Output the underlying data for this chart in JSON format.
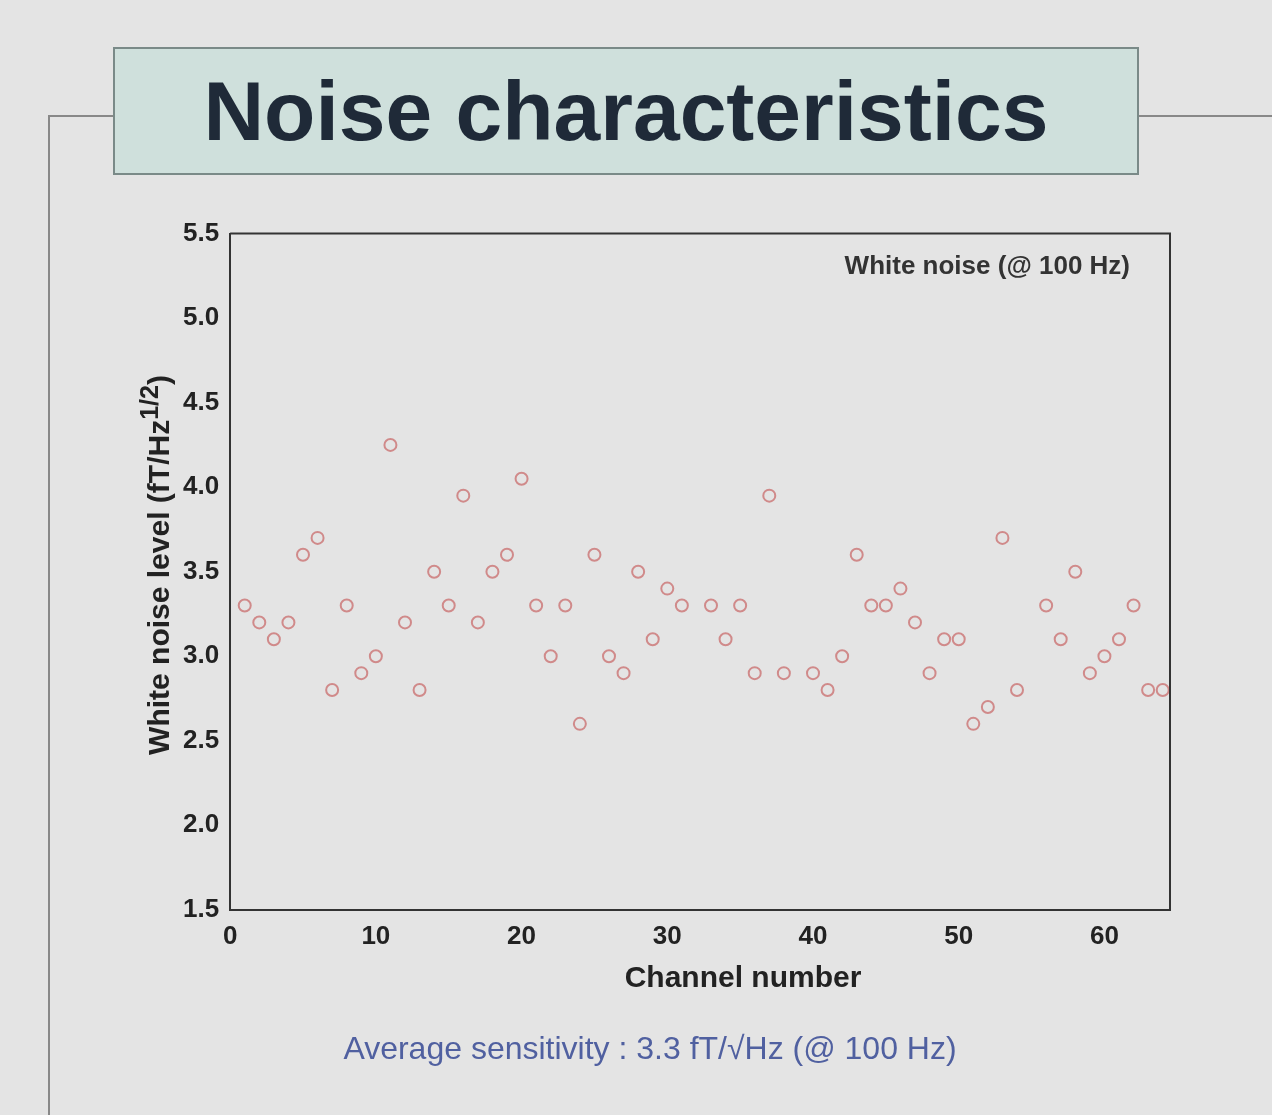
{
  "chart_data": {
    "type": "scatter",
    "title": "Noise characteristics",
    "xlabel": "Channel number",
    "ylabel": "White noise level (fT/Hz$^{1/2}$)",
    "annotations": [
      "White noise (@ 100 Hz)",
      "Average sensitivity : 3.3 fT/√Hz (@ 100 Hz)"
    ],
    "x": [
      1,
      2,
      3,
      4,
      5,
      6,
      7,
      8,
      9,
      10,
      11,
      12,
      13,
      14,
      15,
      16,
      17,
      18,
      19,
      20,
      21,
      22,
      23,
      24,
      25,
      26,
      27,
      28,
      29,
      30,
      31,
      33,
      34,
      35,
      36,
      37,
      38,
      40,
      41,
      42,
      43,
      44,
      45,
      46,
      47,
      48,
      49,
      50,
      51,
      52,
      53,
      54,
      56,
      57,
      58,
      59,
      60,
      61,
      62,
      63,
      64
    ],
    "series": [
      {
        "color": "#d08a8a",
        "values": [
          3.3,
          3.2,
          3.1,
          3.2,
          3.6,
          3.7,
          2.8,
          3.3,
          2.9,
          3.0,
          4.25,
          3.2,
          2.8,
          3.5,
          3.3,
          3.95,
          3.2,
          3.5,
          3.6,
          4.05,
          3.3,
          3.0,
          3.3,
          2.6,
          3.6,
          3.0,
          2.9,
          3.5,
          3.1,
          3.4,
          3.3,
          3.3,
          3.1,
          3.3,
          2.9,
          3.95,
          2.9,
          2.9,
          2.8,
          3.0,
          3.6,
          3.3,
          3.3,
          3.4,
          3.2,
          2.9,
          3.1,
          3.1,
          2.6,
          2.7,
          3.7,
          2.8,
          3.3,
          3.1,
          3.5,
          2.9,
          3.0,
          3.1,
          3.3,
          2.8,
          2.8
        ]
      }
    ],
    "xlim": [
      0,
      64.5
    ],
    "xticks": [
      0,
      10,
      20,
      30,
      40,
      50,
      60
    ],
    "ylim": [
      1.5,
      5.5
    ],
    "yticks": [
      1.5,
      {
        "value": 2,
        "label": "2.0"
      },
      2.5,
      {
        "value": 3,
        "label": "3.0"
      },
      3.5,
      {
        "value": 4,
        "label": "4.0"
      },
      4.5,
      {
        "value": 5,
        "label": "5.0"
      },
      5.5
    ],
    "grid": false,
    "legend": false,
    "marker": "circle"
  }
}
